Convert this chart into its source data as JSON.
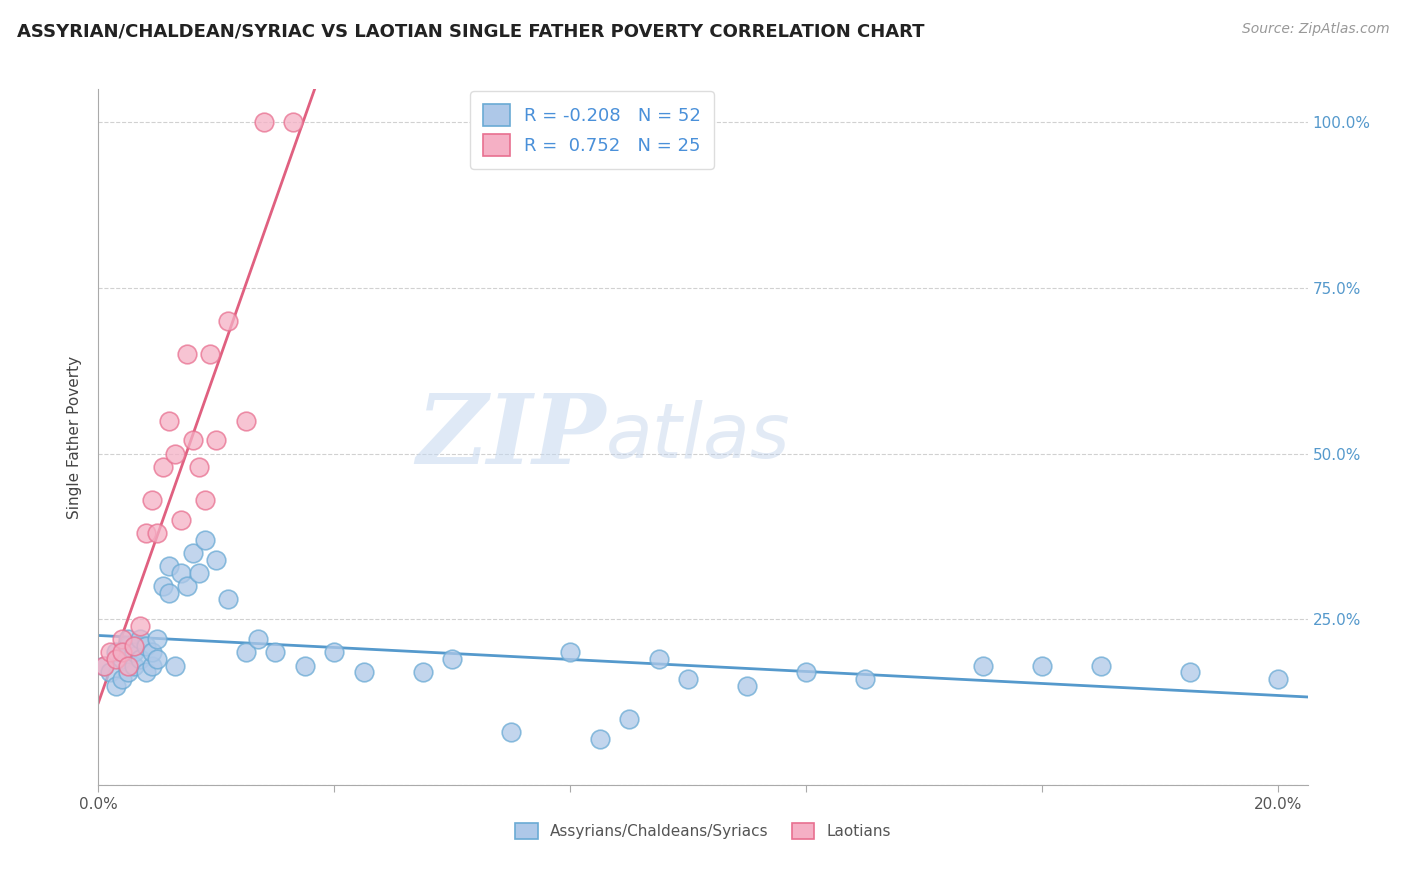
{
  "title": "ASSYRIAN/CHALDEAN/SYRIAC VS LAOTIAN SINGLE FATHER POVERTY CORRELATION CHART",
  "source": "Source: ZipAtlas.com",
  "ylabel": "Single Father Poverty",
  "x_min": 0.0,
  "x_max": 0.205,
  "y_min": 0.0,
  "y_max": 1.05,
  "blue_R": -0.208,
  "blue_N": 52,
  "pink_R": 0.752,
  "pink_N": 25,
  "legend_label_blue": "Assyrians/Chaldeans/Syriacs",
  "legend_label_pink": "Laotians",
  "blue_face_color": "#aec8e8",
  "pink_face_color": "#f5b0c5",
  "blue_edge_color": "#6aaad4",
  "pink_edge_color": "#e87090",
  "blue_line_color": "#5599cc",
  "pink_line_color": "#e06080",
  "watermark_zip_color": "#c5d8f0",
  "watermark_atlas_color": "#b8cce8",
  "blue_scatter_x": [
    0.001,
    0.002,
    0.003,
    0.003,
    0.004,
    0.004,
    0.005,
    0.005,
    0.005,
    0.006,
    0.006,
    0.007,
    0.007,
    0.008,
    0.008,
    0.009,
    0.009,
    0.01,
    0.01,
    0.011,
    0.012,
    0.012,
    0.013,
    0.014,
    0.015,
    0.016,
    0.017,
    0.018,
    0.02,
    0.022,
    0.025,
    0.027,
    0.03,
    0.035,
    0.04,
    0.045,
    0.055,
    0.06,
    0.07,
    0.08,
    0.085,
    0.09,
    0.095,
    0.1,
    0.11,
    0.12,
    0.13,
    0.15,
    0.16,
    0.17,
    0.185,
    0.2
  ],
  "blue_scatter_y": [
    0.18,
    0.17,
    0.2,
    0.15,
    0.16,
    0.19,
    0.21,
    0.17,
    0.22,
    0.18,
    0.2,
    0.19,
    0.22,
    0.17,
    0.21,
    0.18,
    0.2,
    0.22,
    0.19,
    0.3,
    0.29,
    0.33,
    0.18,
    0.32,
    0.3,
    0.35,
    0.32,
    0.37,
    0.34,
    0.28,
    0.2,
    0.22,
    0.2,
    0.18,
    0.2,
    0.17,
    0.17,
    0.19,
    0.08,
    0.2,
    0.07,
    0.1,
    0.19,
    0.16,
    0.15,
    0.17,
    0.16,
    0.18,
    0.18,
    0.18,
    0.17,
    0.16
  ],
  "pink_scatter_x": [
    0.001,
    0.002,
    0.003,
    0.004,
    0.004,
    0.005,
    0.006,
    0.007,
    0.008,
    0.009,
    0.01,
    0.011,
    0.012,
    0.013,
    0.014,
    0.015,
    0.016,
    0.017,
    0.018,
    0.019,
    0.02,
    0.022,
    0.025,
    0.028,
    0.033
  ],
  "pink_scatter_y": [
    0.18,
    0.2,
    0.19,
    0.22,
    0.2,
    0.18,
    0.21,
    0.24,
    0.38,
    0.43,
    0.38,
    0.48,
    0.55,
    0.5,
    0.4,
    0.65,
    0.52,
    0.48,
    0.43,
    0.65,
    0.52,
    0.7,
    0.55,
    1.0,
    1.0
  ]
}
